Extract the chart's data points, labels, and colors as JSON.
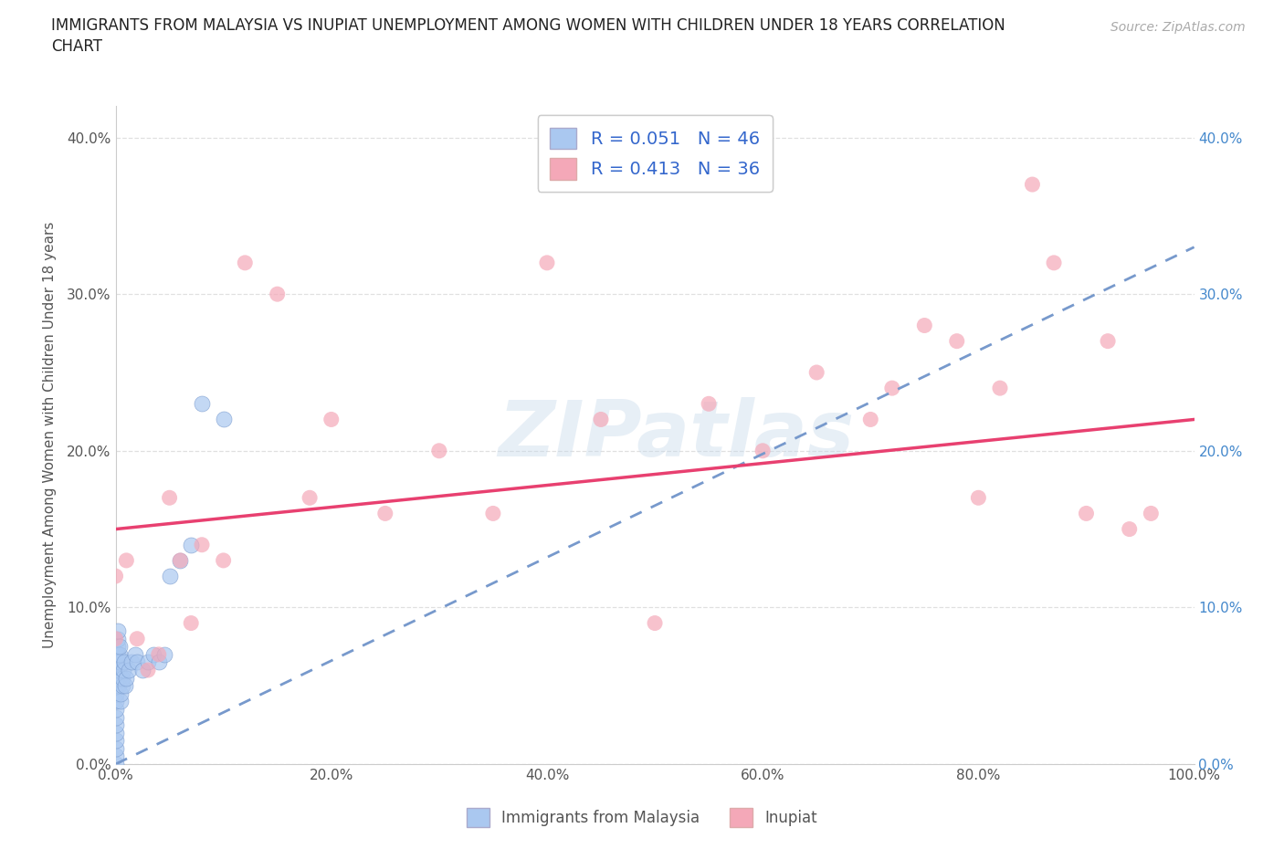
{
  "title_line1": "IMMIGRANTS FROM MALAYSIA VS INUPIAT UNEMPLOYMENT AMONG WOMEN WITH CHILDREN UNDER 18 YEARS CORRELATION",
  "title_line2": "CHART",
  "source": "Source: ZipAtlas.com",
  "ylabel": "Unemployment Among Women with Children Under 18 years",
  "watermark": "ZIPatlas",
  "xlim": [
    0.0,
    1.0
  ],
  "ylim": [
    0.0,
    0.42
  ],
  "xtick_labels": [
    "0.0%",
    "",
    "20.0%",
    "",
    "40.0%",
    "",
    "60.0%",
    "",
    "80.0%",
    "",
    "100.0%"
  ],
  "xtick_vals": [
    0.0,
    0.1,
    0.2,
    0.3,
    0.4,
    0.5,
    0.6,
    0.7,
    0.8,
    0.9,
    1.0
  ],
  "ytick_labels": [
    "0.0%",
    "10.0%",
    "20.0%",
    "30.0%",
    "40.0%"
  ],
  "ytick_vals": [
    0.0,
    0.1,
    0.2,
    0.3,
    0.4
  ],
  "legend_label1": "Immigrants from Malaysia",
  "legend_label2": "Inupiat",
  "R1": "0.051",
  "N1": "46",
  "R2": "0.413",
  "N2": "36",
  "color1": "#aac8f0",
  "color2": "#f4a8b8",
  "trendline1_color": "#7799cc",
  "trendline2_color": "#e84070",
  "background_color": "#ffffff",
  "grid_color": "#e0e0e0",
  "title_color": "#222222",
  "label_color": "#555555",
  "right_tick_color": "#4488cc",
  "legend_text_color": "#3366cc",
  "scatter1_x": [
    0.0,
    0.0,
    0.0,
    0.0,
    0.0,
    0.0,
    0.0,
    0.0,
    0.0,
    0.0,
    0.001,
    0.001,
    0.001,
    0.001,
    0.002,
    0.002,
    0.002,
    0.002,
    0.003,
    0.003,
    0.003,
    0.004,
    0.004,
    0.004,
    0.005,
    0.005,
    0.006,
    0.006,
    0.007,
    0.008,
    0.009,
    0.01,
    0.012,
    0.015,
    0.018,
    0.02,
    0.025,
    0.03,
    0.035,
    0.04,
    0.045,
    0.05,
    0.06,
    0.07,
    0.08,
    0.1
  ],
  "scatter1_y": [
    0.0,
    0.005,
    0.01,
    0.015,
    0.02,
    0.025,
    0.03,
    0.035,
    0.04,
    0.045,
    0.05,
    0.055,
    0.06,
    0.065,
    0.07,
    0.075,
    0.08,
    0.085,
    0.05,
    0.055,
    0.06,
    0.065,
    0.07,
    0.075,
    0.04,
    0.045,
    0.05,
    0.055,
    0.06,
    0.065,
    0.05,
    0.055,
    0.06,
    0.065,
    0.07,
    0.065,
    0.06,
    0.065,
    0.07,
    0.065,
    0.07,
    0.12,
    0.13,
    0.14,
    0.23,
    0.22
  ],
  "scatter2_x": [
    0.0,
    0.0,
    0.01,
    0.02,
    0.03,
    0.04,
    0.05,
    0.06,
    0.07,
    0.08,
    0.1,
    0.12,
    0.15,
    0.18,
    0.2,
    0.25,
    0.3,
    0.35,
    0.4,
    0.45,
    0.5,
    0.55,
    0.6,
    0.65,
    0.7,
    0.72,
    0.75,
    0.78,
    0.8,
    0.82,
    0.85,
    0.87,
    0.9,
    0.92,
    0.94,
    0.96
  ],
  "scatter2_y": [
    0.08,
    0.12,
    0.13,
    0.08,
    0.06,
    0.07,
    0.17,
    0.13,
    0.09,
    0.14,
    0.13,
    0.32,
    0.3,
    0.17,
    0.22,
    0.16,
    0.2,
    0.16,
    0.32,
    0.22,
    0.09,
    0.23,
    0.2,
    0.25,
    0.22,
    0.24,
    0.28,
    0.27,
    0.17,
    0.24,
    0.37,
    0.32,
    0.16,
    0.27,
    0.15,
    0.16
  ],
  "trendline1_x": [
    0.0,
    1.0
  ],
  "trendline1_y": [
    0.0,
    0.33
  ],
  "trendline2_x": [
    0.0,
    1.0
  ],
  "trendline2_y": [
    0.15,
    0.22
  ]
}
